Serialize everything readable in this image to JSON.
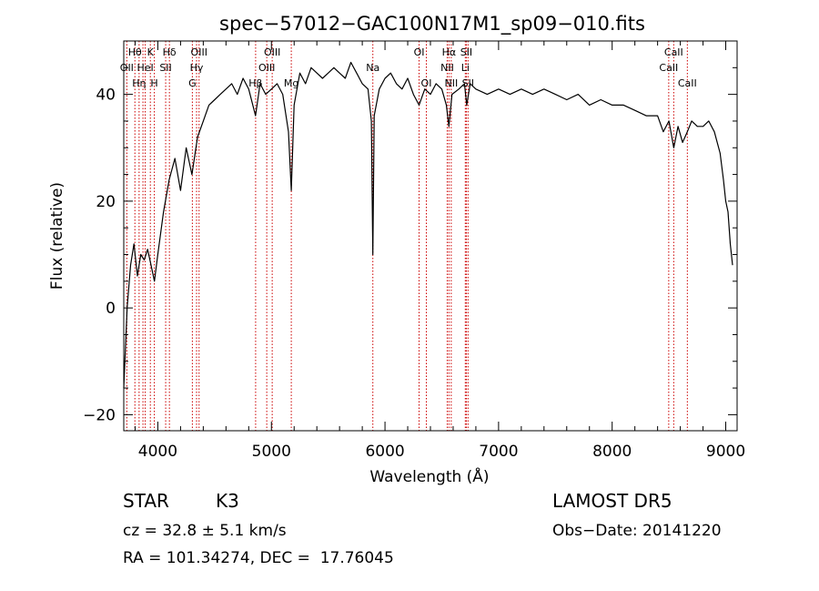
{
  "chart_data": {
    "type": "line",
    "title": "spec−57012−GAC100N17M1_sp09−010.fits",
    "xlabel": "Wavelength (Å)",
    "ylabel": "Flux (relative)",
    "xlim": [
      3700,
      9100
    ],
    "ylim": [
      -23,
      50
    ],
    "xticks": [
      4000,
      5000,
      6000,
      7000,
      8000,
      9000
    ],
    "yticks": [
      -20,
      0,
      20,
      40
    ],
    "ytick_labels": [
      "−20",
      "0",
      "20",
      "40"
    ],
    "grid": false,
    "series": [
      {
        "x": [
          3700,
          3730,
          3760,
          3790,
          3820,
          3850,
          3880,
          3910,
          3940,
          3970,
          4000,
          4050,
          4100,
          4150,
          4200,
          4250,
          4300,
          4350,
          4400,
          4450,
          4500,
          4550,
          4600,
          4650,
          4700,
          4750,
          4800,
          4860,
          4900,
          4950,
          5000,
          5050,
          5100,
          5150,
          5175,
          5200,
          5250,
          5300,
          5350,
          5400,
          5450,
          5500,
          5550,
          5600,
          5650,
          5700,
          5750,
          5800,
          5850,
          5880,
          5893,
          5905,
          5950,
          6000,
          6050,
          6100,
          6150,
          6200,
          6250,
          6300,
          6350,
          6400,
          6450,
          6500,
          6540,
          6563,
          6590,
          6650,
          6700,
          6720,
          6750,
          6800,
          6900,
          7000,
          7100,
          7200,
          7300,
          7400,
          7500,
          7600,
          7700,
          7800,
          7900,
          8000,
          8100,
          8200,
          8300,
          8400,
          8450,
          8500,
          8542,
          8580,
          8620,
          8662,
          8700,
          8750,
          8800,
          8850,
          8900,
          8950,
          8980,
          9000,
          9020,
          9040,
          9060
        ],
        "y": [
          -15,
          0,
          8,
          12,
          6,
          10,
          9,
          11,
          8,
          5,
          10,
          18,
          24,
          28,
          22,
          30,
          25,
          32,
          35,
          38,
          39,
          40,
          41,
          42,
          40,
          43,
          41,
          36,
          42,
          40,
          41,
          42,
          40,
          33,
          22,
          38,
          44,
          42,
          45,
          44,
          43,
          44,
          45,
          44,
          43,
          46,
          44,
          42,
          41,
          35,
          10,
          36,
          41,
          43,
          44,
          42,
          41,
          43,
          40,
          38,
          41,
          40,
          42,
          41,
          38,
          34,
          40,
          41,
          42,
          38,
          42,
          41,
          40,
          41,
          40,
          41,
          40,
          41,
          40,
          39,
          40,
          38,
          39,
          38,
          38,
          37,
          36,
          36,
          33,
          35,
          30,
          34,
          31,
          33,
          35,
          34,
          34,
          35,
          33,
          29,
          24,
          20,
          18,
          12,
          8
        ]
      }
    ],
    "line_marker_color": "#cc0000",
    "line_markers": [
      {
        "w": 3727,
        "label": "OII",
        "row": 2
      },
      {
        "w": 3798,
        "label": "Hθ",
        "row": 1
      },
      {
        "w": 3835,
        "label": "Hη",
        "row": 3
      },
      {
        "w": 3869,
        "label": "",
        "row": 0
      },
      {
        "w": 3889,
        "label": "HeI",
        "row": 2
      },
      {
        "w": 3934,
        "label": "K",
        "row": 1
      },
      {
        "w": 3969,
        "label": "H",
        "row": 3
      },
      {
        "w": 4069,
        "label": "SII",
        "row": 2
      },
      {
        "w": 4102,
        "label": "Hδ",
        "row": 1
      },
      {
        "w": 4304,
        "label": "G",
        "row": 3
      },
      {
        "w": 4341,
        "label": "Hγ",
        "row": 2
      },
      {
        "w": 4363,
        "label": "OIII",
        "row": 1
      },
      {
        "w": 4861,
        "label": "Hβ",
        "row": 3
      },
      {
        "w": 4959,
        "label": "OIII",
        "row": 2
      },
      {
        "w": 5007,
        "label": "OIII",
        "row": 1
      },
      {
        "w": 5175,
        "label": "Mg",
        "row": 3
      },
      {
        "w": 5893,
        "label": "Na",
        "row": 2
      },
      {
        "w": 6300,
        "label": "OI",
        "row": 1
      },
      {
        "w": 6364,
        "label": "OI",
        "row": 3
      },
      {
        "w": 6548,
        "label": "NII",
        "row": 2
      },
      {
        "w": 6563,
        "label": "Hα",
        "row": 1
      },
      {
        "w": 6583,
        "label": "NII",
        "row": 3
      },
      {
        "w": 6707,
        "label": "Li",
        "row": 2
      },
      {
        "w": 6716,
        "label": "SII",
        "row": 1
      },
      {
        "w": 6731,
        "label": "SII",
        "row": 3
      },
      {
        "w": 8498,
        "label": "CaII",
        "row": 2
      },
      {
        "w": 8542,
        "label": "CaII",
        "row": 1
      },
      {
        "w": 8662,
        "label": "CaII",
        "row": 3
      }
    ]
  },
  "info": {
    "object_class": "STAR",
    "subclass": "K3",
    "redshift_line": "cz = 32.8 ± 5.1 km/s",
    "coords_line": "RA = 101.34274, DEC =  17.76045",
    "survey": "LAMOST DR5",
    "obs_date": "Obs−Date: 20141220"
  }
}
